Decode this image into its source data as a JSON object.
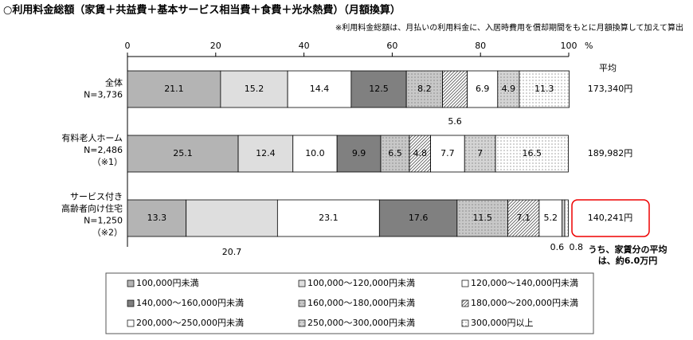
{
  "chart_data": {
    "type": "stacked_barh",
    "title": "○利用料金総額（家賃＋共益費＋基本サービス相当費＋食費＋光水熱費）（月額換算）",
    "note": "※利用料金総額は、月払いの利用料金に、入居時費用を償却期間をもとに月額換算して加えて算出",
    "x_unit": "%",
    "average_header": "平均",
    "categories": [
      [
        "全体",
        "N=3,736"
      ],
      [
        "有料老人ホーム",
        "N=2,486",
        "（※1）"
      ],
      [
        "サービス付き",
        "高齢者向け住宅",
        "N=1,250",
        "（※2）"
      ]
    ],
    "averages": [
      "173,340円",
      "189,982円",
      "140,241円"
    ],
    "highlight": 2,
    "annotation": [
      "うち、家賃分の平均",
      "は、約6.0万円"
    ],
    "xlim": [
      0,
      100
    ],
    "xticks": [
      0,
      20,
      40,
      60,
      80,
      100
    ],
    "series": [
      {
        "name": "100,000円未満",
        "color": "#b4b4b4",
        "pattern": "solid",
        "values": [
          21.1,
          25.1,
          13.3
        ]
      },
      {
        "name": "100,000～120,000円未満",
        "color": "#dedede",
        "pattern": "solid",
        "values": [
          15.2,
          12.4,
          20.7
        ]
      },
      {
        "name": "120,000～140,000円未満",
        "color": "#ffffff",
        "pattern": "solid",
        "values": [
          14.4,
          10.0,
          23.1
        ],
        "value_labels": [
          "14.4",
          "10.0",
          "23.1"
        ]
      },
      {
        "name": "140,000～160,000円未満",
        "color": "#808080",
        "pattern": "solid",
        "values": [
          12.5,
          9.9,
          17.6
        ]
      },
      {
        "name": "160,000～180,000円未満",
        "color": "#c8c8c8",
        "pattern": "dots",
        "values": [
          8.2,
          6.5,
          11.5
        ]
      },
      {
        "name": "180,000～200,000円未満",
        "color": "#ffffff",
        "pattern": "hatch",
        "values": [
          5.6,
          4.8,
          7.1
        ]
      },
      {
        "name": "200,000～250,000円未満",
        "color": "#ffffff",
        "pattern": "solid",
        "values": [
          6.9,
          7.7,
          5.2
        ]
      },
      {
        "name": "250,000～300,000円未満",
        "color": "#d4d4d4",
        "pattern": "dots",
        "values": [
          4.9,
          7.0,
          0.6
        ]
      },
      {
        "name": "300,000円以上",
        "color": "#ffffff",
        "pattern": "dots",
        "values": [
          11.3,
          16.5,
          0.8
        ]
      }
    ]
  }
}
